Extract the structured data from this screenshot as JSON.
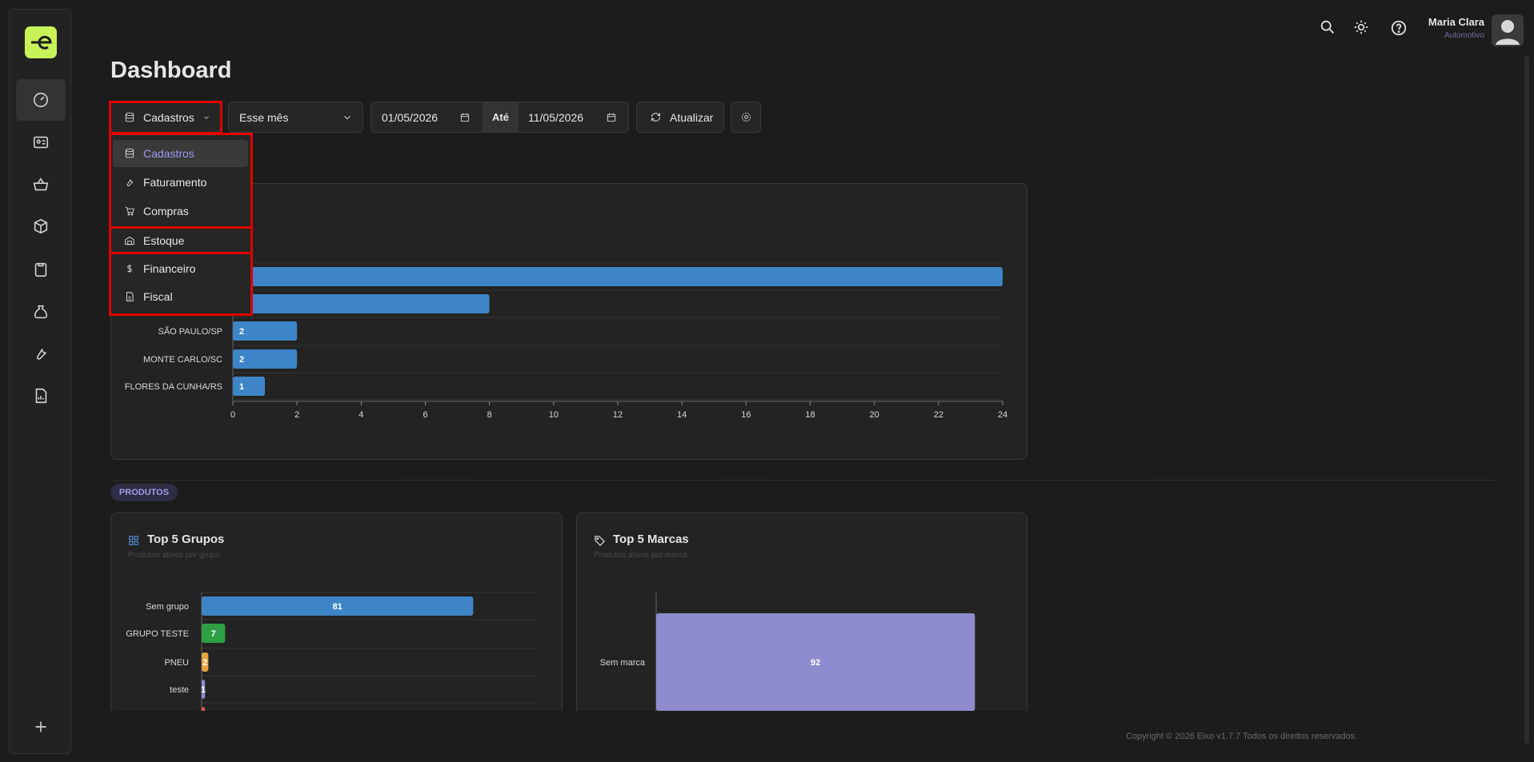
{
  "user": {
    "name": "Maria Clara",
    "role": "Automotivo"
  },
  "page_title": "Dashboard",
  "toolbar": {
    "module": "Cadastros",
    "period": "Esse mês",
    "date_from": "01/05/2026",
    "until": "Até",
    "date_to": "11/05/2026",
    "refresh": "Atualizar"
  },
  "menu": [
    "Cadastros",
    "Faturamento",
    "Compras",
    "Estoque",
    "Financeiro",
    "Fiscal"
  ],
  "section_label": "PRODUTOS",
  "chart_data": [
    {
      "type": "bar",
      "orientation": "horizontal",
      "categories": [
        null,
        null,
        "SÃO PAULO/SP",
        "MONTE CARLO/SC",
        "FLORES DA CUNHA/RS"
      ],
      "values": [
        24,
        8,
        2,
        2,
        1
      ],
      "color": "#3d85c6",
      "xlim": [
        0,
        24
      ],
      "xticks": [
        0,
        2,
        4,
        6,
        8,
        10,
        12,
        14,
        16,
        18,
        20,
        22,
        24
      ]
    },
    {
      "type": "bar",
      "orientation": "horizontal",
      "title": "Top 5 Grupos",
      "subtitle": "Produtos ativos por grupo",
      "categories": [
        "Sem grupo",
        "GRUPO TESTE",
        "PNEU",
        "teste",
        null
      ],
      "values": [
        81,
        7,
        2,
        1,
        1
      ],
      "colors": [
        "#3d85c6",
        "#2ea043",
        "#e6a23c",
        "#8e8cd8",
        "#d9534f"
      ],
      "xlim": [
        0,
        100
      ]
    },
    {
      "type": "bar",
      "orientation": "horizontal",
      "title": "Top 5 Marcas",
      "subtitle": "Produtos ativos por marca",
      "categories": [
        "Sem marca"
      ],
      "values": [
        92
      ],
      "color": "#8e8ccc",
      "xlim": [
        0,
        100
      ]
    }
  ],
  "footer": "Copyright © 2026 Eixo v1.7.7 Todos os direitos reservados."
}
